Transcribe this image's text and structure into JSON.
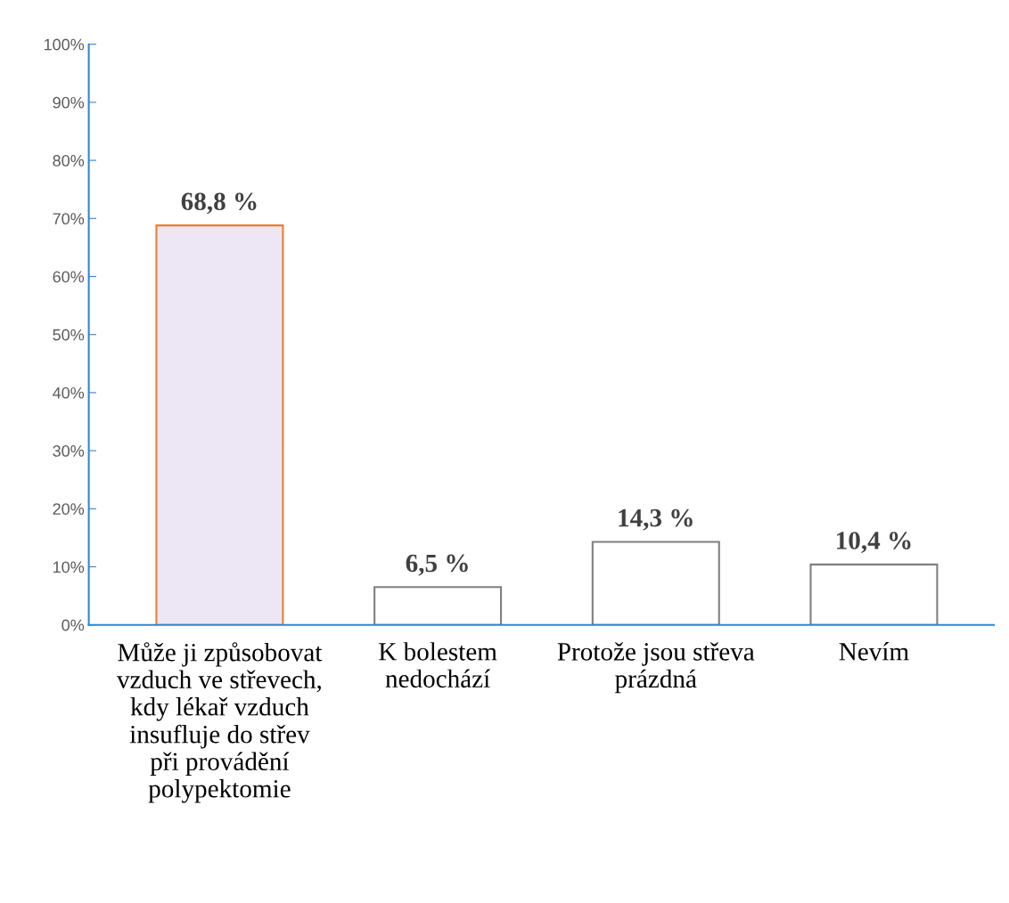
{
  "chart_data": {
    "type": "bar",
    "categories": [
      "Může ji způsobovat\nvzduch ve střevech,\nkdy lékař vzduch\ninsufluje do střev\npři provádění\npolypektomie",
      "K bolestem\nnedochází",
      "Protože jsou střeva\nprázdná",
      "Nevím"
    ],
    "values": [
      68.8,
      6.5,
      14.3,
      10.4
    ],
    "colors": [
      "#ede7f5",
      "#ffffff",
      "#ffffff",
      "#ffffff"
    ],
    "value_labels": [
      "68,8 %",
      "6,5 %",
      "14,3 %",
      "10,4 %"
    ],
    "ylim": [
      0,
      100
    ],
    "yticks": [
      {
        "value": 0,
        "label": "0%"
      },
      {
        "value": 10,
        "label": "10%"
      },
      {
        "value": 20,
        "label": "20%"
      },
      {
        "value": 30,
        "label": "30%"
      },
      {
        "value": 40,
        "label": "40%"
      },
      {
        "value": 50,
        "label": "50%"
      },
      {
        "value": 60,
        "label": "60%"
      },
      {
        "value": 70,
        "label": "70%"
      },
      {
        "value": 80,
        "label": "80%"
      },
      {
        "value": 90,
        "label": "90%"
      },
      {
        "value": 100,
        "label": "100%"
      }
    ],
    "grid": false,
    "legend": false
  }
}
